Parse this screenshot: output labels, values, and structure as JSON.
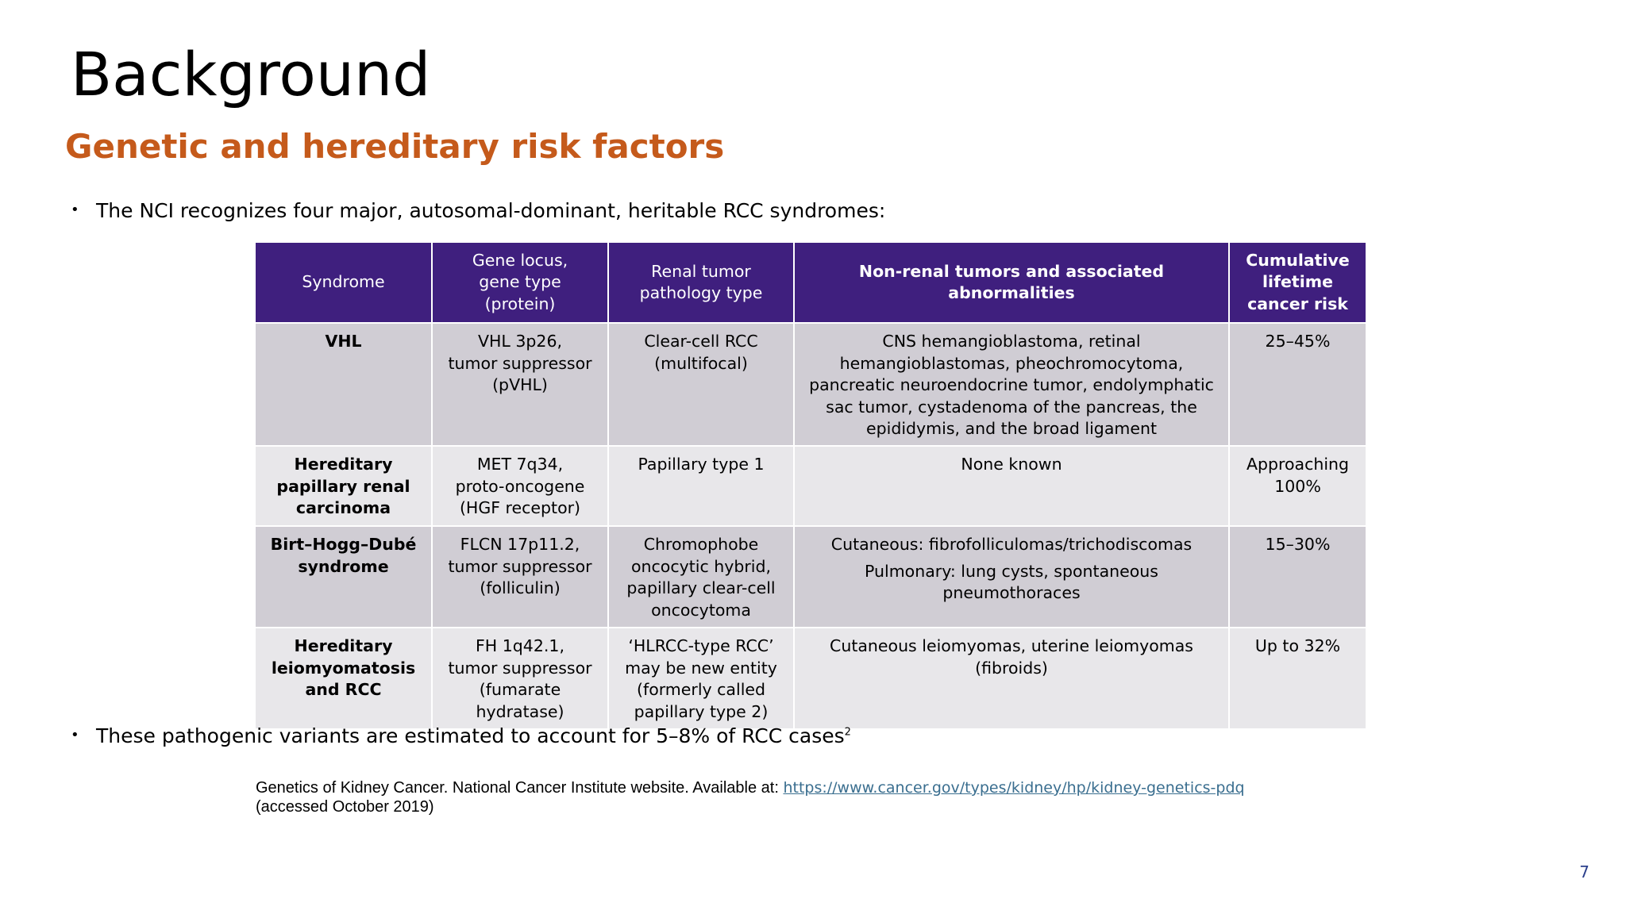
{
  "slide": {
    "title": "Background",
    "subtitle": "Genetic and hereditary risk factors",
    "bullet_marker": "•",
    "bullet1": "The NCI recognizes four major, autosomal-dominant, heritable RCC syndromes:",
    "bullet2": "These pathogenic variants are estimated to account for 5–8% of RCC cases",
    "bullet2_sup": "2",
    "footnote_text": "Genetics of Kidney Cancer. National Cancer Institute website. Available at: ",
    "footnote_link": "https://www.cancer.gov/types/kidney/hp/kidney-genetics-pdq",
    "footnote_tail": "(accessed October 2019)",
    "page_number": "7",
    "colors": {
      "header_bg": "#3f1f7e",
      "subtitle": "#c55a1b",
      "row_dark": "#d0cdd4",
      "row_light": "#e8e7ea"
    }
  },
  "table": {
    "headers": [
      [
        "Syndrome"
      ],
      [
        "Gene locus,",
        "gene type",
        "(protein)"
      ],
      [
        "Renal tumor",
        "pathology type"
      ],
      [
        "Non-renal tumors and associated",
        "abnormalities"
      ],
      [
        "Cumulative",
        "lifetime",
        "cancer risk"
      ]
    ],
    "rows": [
      {
        "syndrome": [
          "VHL"
        ],
        "gene": [
          "VHL 3p26,",
          "tumor suppressor",
          "(pVHL)"
        ],
        "pathology": [
          "Clear-cell RCC",
          "(multifocal)"
        ],
        "nonrenal": [
          "CNS hemangioblastoma, retinal",
          "hemangioblastomas, pheochromocytoma,",
          "pancreatic neuroendocrine tumor, endolymphatic",
          "sac tumor, cystadenoma of the pancreas, the",
          "epididymis, and the broad ligament"
        ],
        "risk": [
          "25–45%"
        ]
      },
      {
        "syndrome": [
          "Hereditary",
          "papillary renal",
          "carcinoma"
        ],
        "gene": [
          "MET 7q34,",
          "proto-oncogene",
          "(HGF receptor)"
        ],
        "pathology": [
          "Papillary type 1"
        ],
        "nonrenal": [
          "None known"
        ],
        "risk": [
          "Approaching",
          "100%"
        ]
      },
      {
        "syndrome": [
          "Birt–Hogg–Dubé",
          "syndrome"
        ],
        "gene": [
          "FLCN 17p11.2,",
          "tumor suppressor",
          "(folliculin)"
        ],
        "pathology": [
          "Chromophobe",
          "oncocytic hybrid,",
          "papillary clear-cell",
          "oncocytoma"
        ],
        "nonrenal": [
          "Cutaneous: fibrofolliculomas/trichodiscomas"
        ],
        "nonrenal2": [
          "Pulmonary: lung cysts, spontaneous",
          "pneumothoraces"
        ],
        "risk": [
          "15–30%"
        ]
      },
      {
        "syndrome": [
          "Hereditary",
          "leiomyomatosis",
          "and RCC"
        ],
        "gene": [
          "FH 1q42.1,",
          "tumor suppressor",
          "(fumarate",
          "hydratase)"
        ],
        "pathology": [
          "‘HLRCC-type RCC’",
          "may be new entity",
          "(formerly called",
          "papillary type 2)"
        ],
        "nonrenal": [
          "Cutaneous leiomyomas, uterine leiomyomas",
          "(fibroids)"
        ],
        "risk": [
          "Up to 32%"
        ]
      }
    ]
  }
}
